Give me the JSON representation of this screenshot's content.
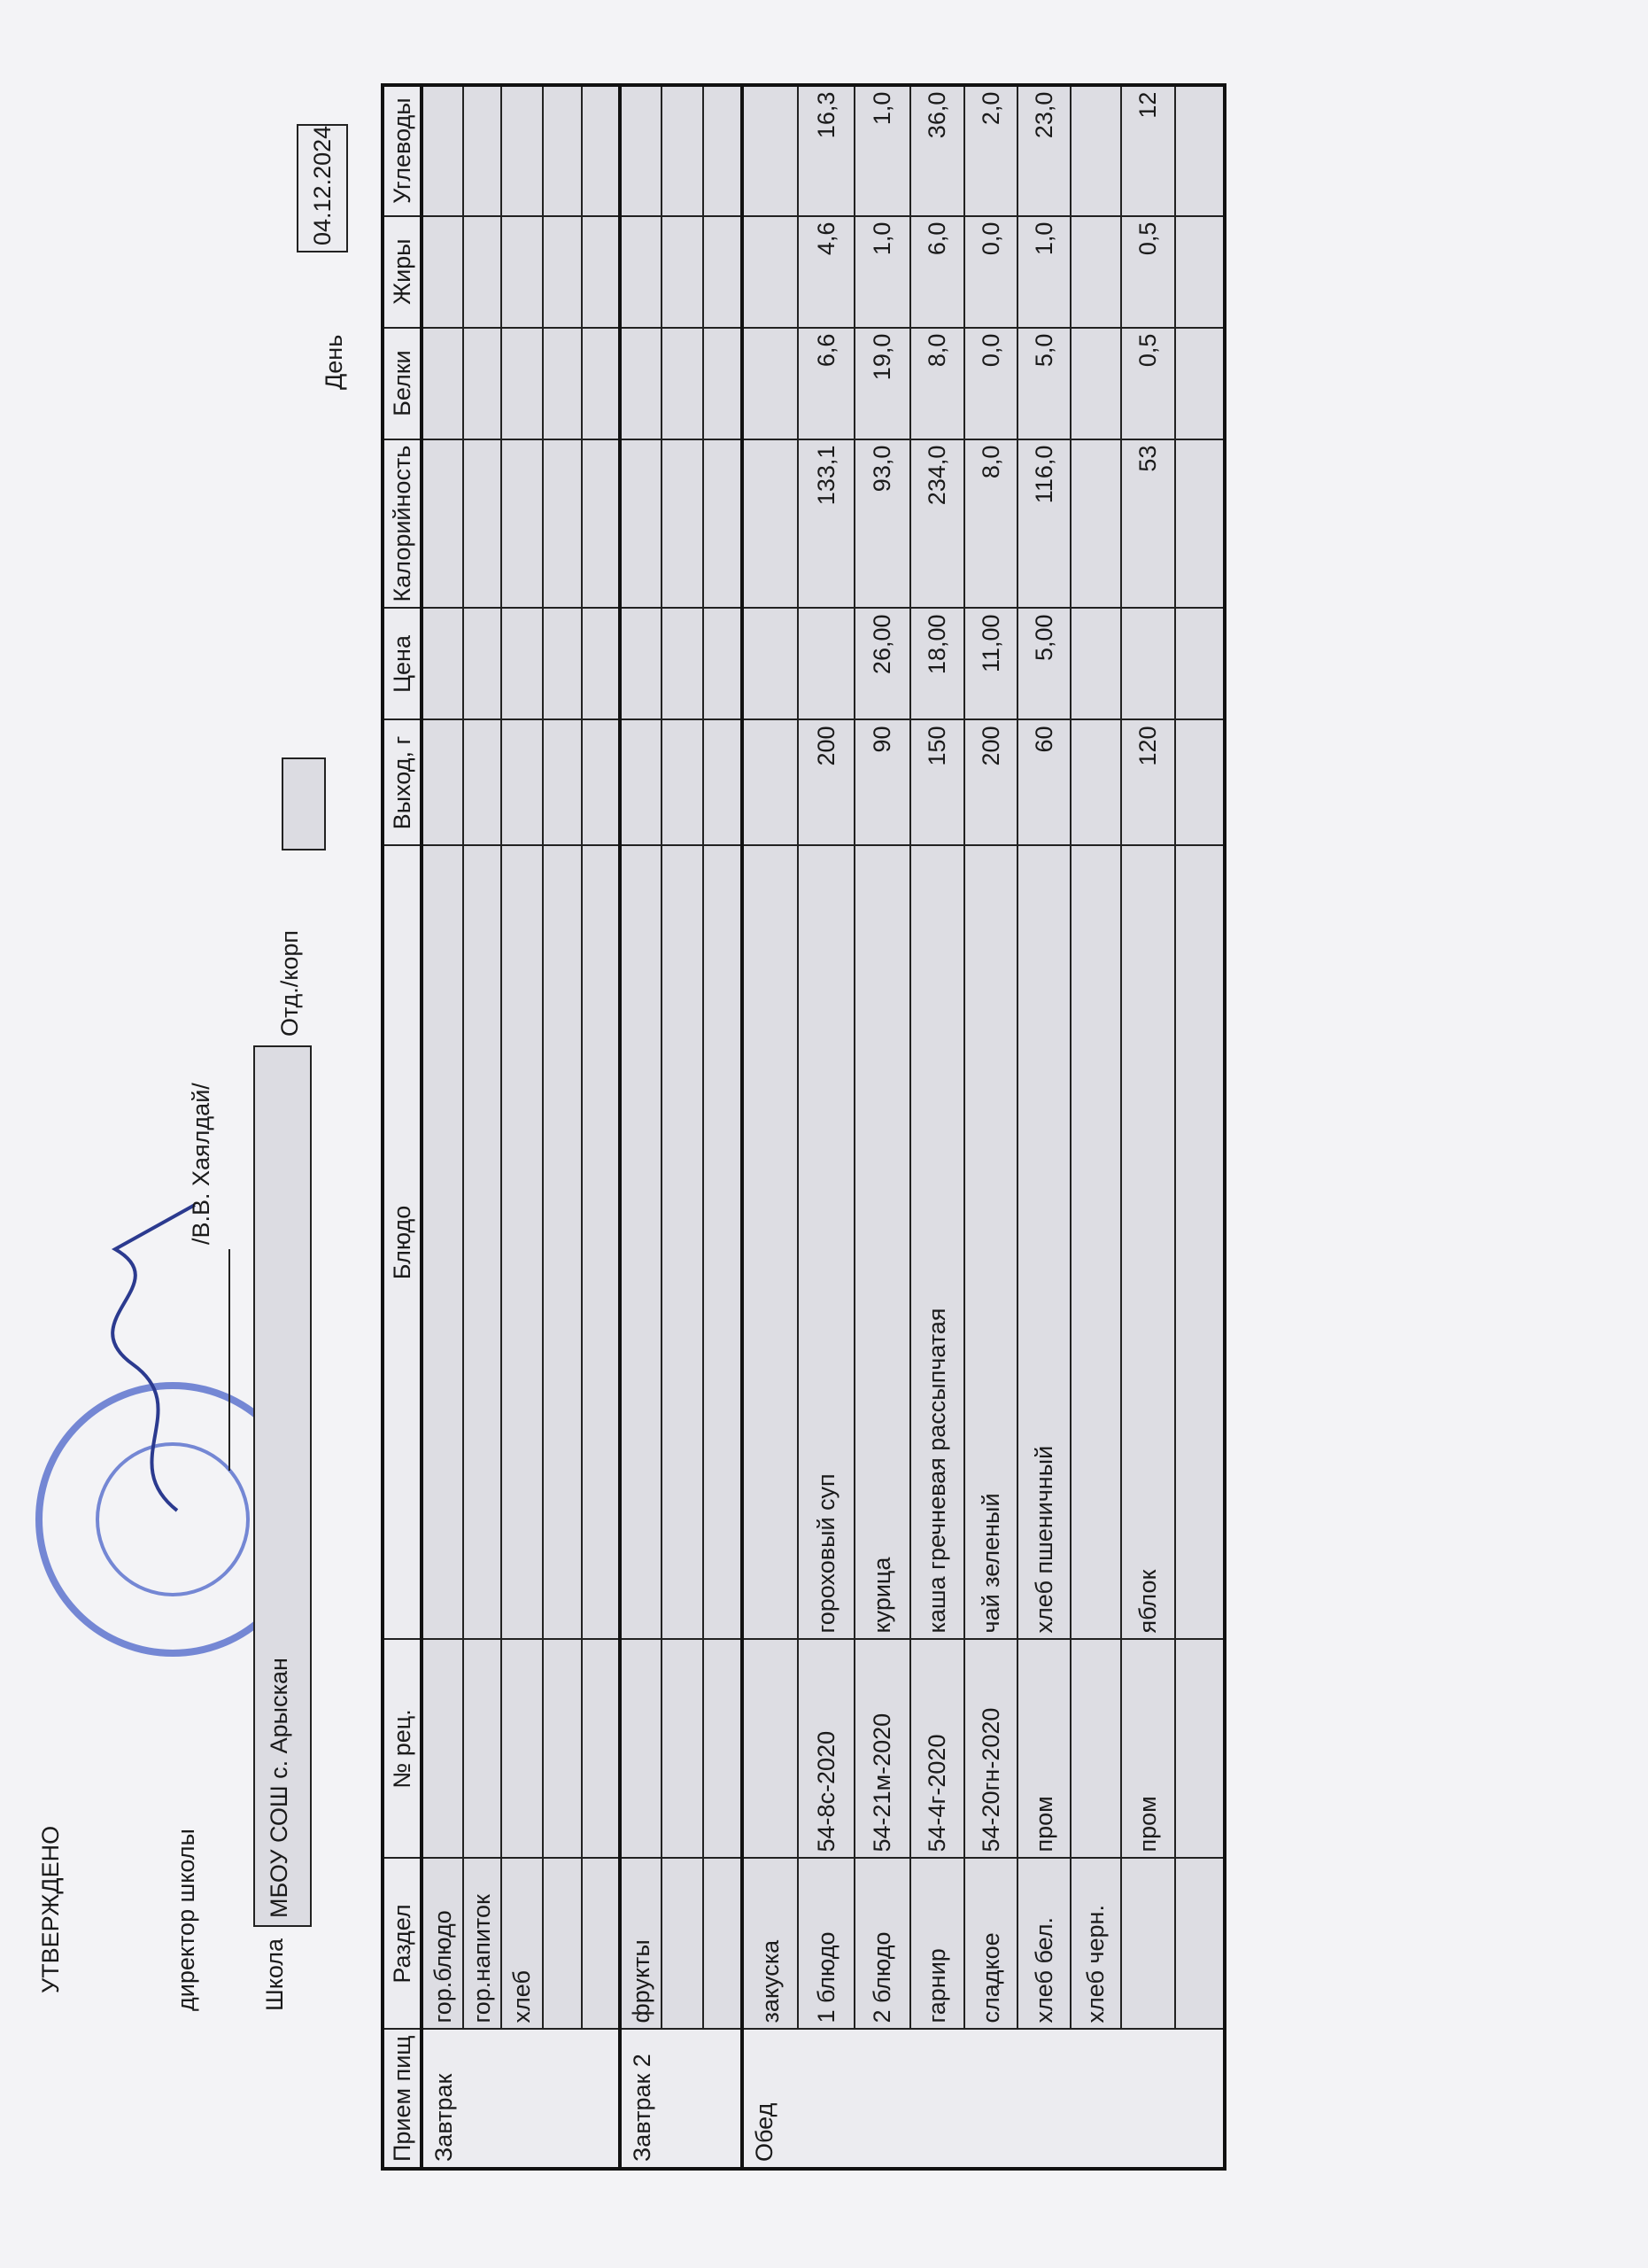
{
  "header": {
    "approved": "УТВЕРЖДЕНО",
    "director_label": "директор школы",
    "director_name": "/В.В. Хаялдай/",
    "school_label": "Школа",
    "school_value": "МБОУ СОШ с. Арыскан",
    "department_label": "Отд./корп",
    "department_value": "",
    "day_label": "День",
    "day_value": "04.12.2024"
  },
  "stamp": {
    "text": "МБОУ СОШ с. Арыскан",
    "color": "#4a63c9"
  },
  "table": {
    "columns": [
      "Прием пищ",
      "Раздел",
      "№ рец.",
      "Блюдо",
      "Выход, г",
      "Цена",
      "Калорийность",
      "Белки",
      "Жиры",
      "Углеводы"
    ],
    "groups": [
      {
        "meal": "Завтрак",
        "rows": [
          [
            "гор.блюдо",
            "",
            "",
            "",
            "",
            "",
            "",
            "",
            ""
          ],
          [
            "гор.напиток",
            "",
            "",
            "",
            "",
            "",
            "",
            "",
            ""
          ],
          [
            "хлеб",
            "",
            "",
            "",
            "",
            "",
            "",
            "",
            ""
          ],
          [
            "",
            "",
            "",
            "",
            "",
            "",
            "",
            "",
            ""
          ],
          [
            "",
            "",
            "",
            "",
            "",
            "",
            "",
            "",
            ""
          ]
        ]
      },
      {
        "meal": "Завтрак 2",
        "rows": [
          [
            "фрукты",
            "",
            "",
            "",
            "",
            "",
            "",
            "",
            ""
          ],
          [
            "",
            "",
            "",
            "",
            "",
            "",
            "",
            "",
            ""
          ],
          [
            "",
            "",
            "",
            "",
            "",
            "",
            "",
            "",
            ""
          ]
        ]
      },
      {
        "meal": "Обед",
        "rows": [
          [
            "закуска",
            "",
            "",
            "",
            "",
            "",
            "",
            "",
            ""
          ],
          [
            "1 блюдо",
            "54-8с-2020",
            "гороховый суп",
            "200",
            "",
            "133,1",
            "6,6",
            "4,6",
            "16,3"
          ],
          [
            "2 блюдо",
            "54-21м-2020",
            "курица",
            "90",
            "26,00",
            "93,0",
            "19,0",
            "1,0",
            "1,0"
          ],
          [
            "гарнир",
            "54-4г-2020",
            "каша гречневая рассыпчатая",
            "150",
            "18,00",
            "234,0",
            "8,0",
            "6,0",
            "36,0"
          ],
          [
            "сладкое",
            "54-20гн-2020",
            "чай зеленый",
            "200",
            "11,00",
            "8,0",
            "0,0",
            "0,0",
            "2,0"
          ],
          [
            "хлеб бел.",
            "пром",
            "хлеб пшеничный",
            "60",
            "5,00",
            "116,0",
            "5,0",
            "1,0",
            "23,0"
          ],
          [
            "хлеб черн.",
            "",
            "",
            "",
            "",
            "",
            "",
            "",
            ""
          ],
          [
            "",
            "пром",
            "яблок",
            "120",
            "",
            "53",
            "0,5",
            "0,5",
            "12"
          ],
          [
            "",
            "",
            "",
            "",
            "",
            "",
            "",
            "",
            ""
          ]
        ]
      }
    ]
  }
}
